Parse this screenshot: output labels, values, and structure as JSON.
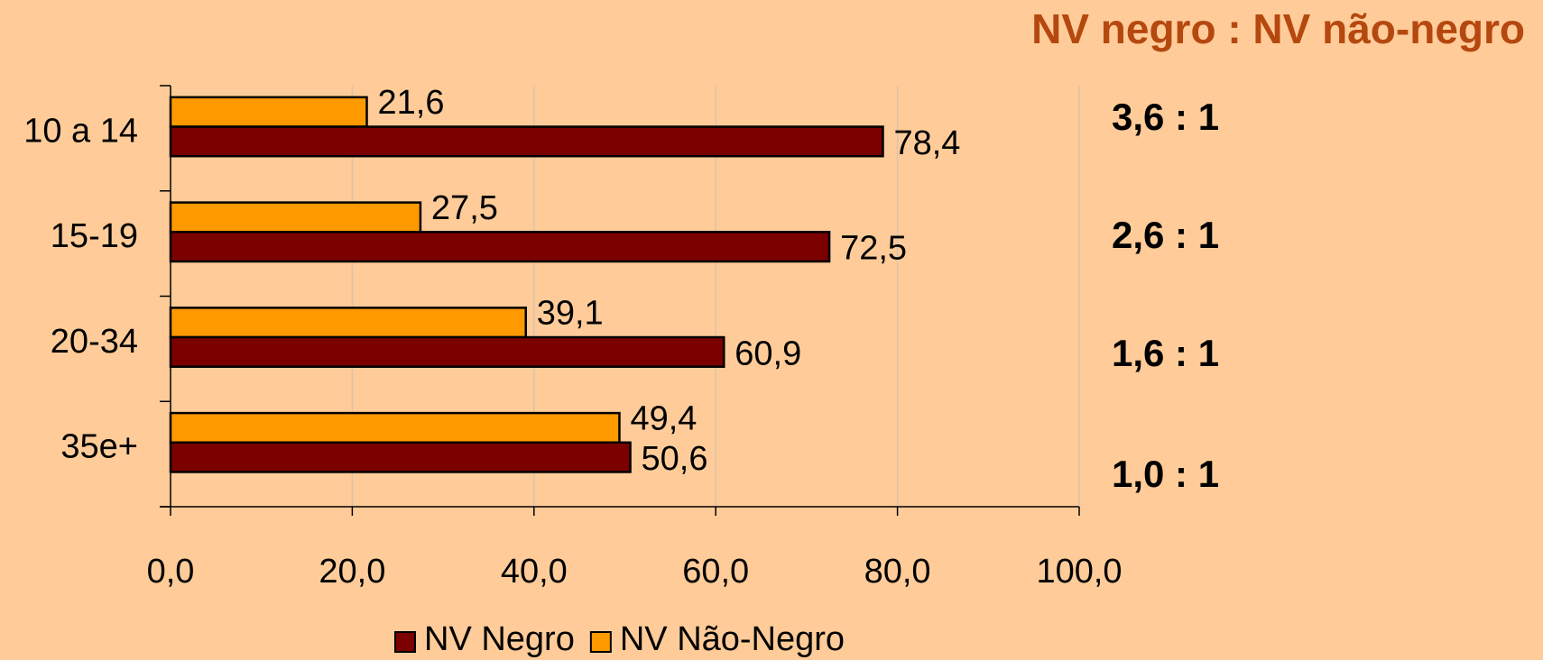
{
  "chart_data": {
    "type": "hbar",
    "title": "NV negro : NV não-negro",
    "categories": [
      "10 a 14",
      "15-19",
      "20-34",
      "35e+"
    ],
    "series": [
      {
        "name": "NV Negro",
        "color": "#7b0000",
        "values": [
          78.4,
          72.5,
          60.9,
          50.6
        ],
        "value_labels": [
          "78,4",
          "72,5",
          "60,9",
          "50,6"
        ]
      },
      {
        "name": "NV Não-Negro",
        "color": "#ff9900",
        "values": [
          21.6,
          27.5,
          39.1,
          49.4
        ],
        "value_labels": [
          "21,6",
          "27,5",
          "39,1",
          "49,4"
        ]
      }
    ],
    "annotations": [
      "3,6 : 1",
      "2,6 : 1",
      "1,6 : 1",
      "1,0 : 1"
    ],
    "xlim": [
      0,
      100
    ],
    "xticks": [
      {
        "value": 0,
        "label": "0,0"
      },
      {
        "value": 20,
        "label": "20,0"
      },
      {
        "value": 40,
        "label": "40,0"
      },
      {
        "value": 60,
        "label": "60,0"
      },
      {
        "value": 80,
        "label": "80,0"
      },
      {
        "value": 100,
        "label": "100,0"
      }
    ],
    "grid": true,
    "legend": "bottom"
  }
}
